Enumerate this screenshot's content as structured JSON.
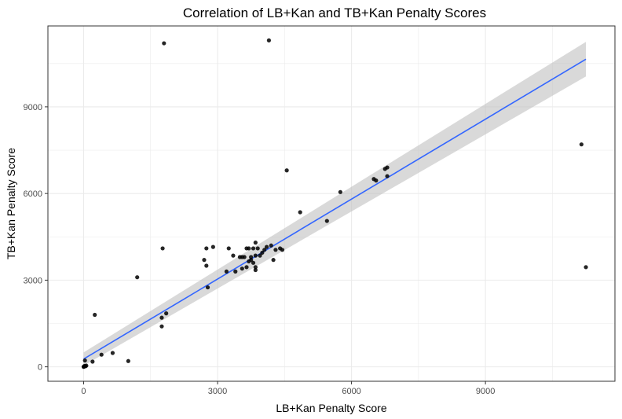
{
  "chart_data": {
    "type": "scatter",
    "title": "Correlation of LB+Kan and TB+Kan Penalty Scores",
    "xlabel": "LB+Kan Penalty Score",
    "ylabel": "TB+Kan Penalty Score",
    "xlim": [
      -800,
      11900
    ],
    "ylim": [
      -500,
      11800
    ],
    "xticks": [
      0,
      3000,
      6000,
      9000
    ],
    "yticks": [
      0,
      3000,
      6000,
      9000
    ],
    "xtick_labels": [
      "0",
      "3000",
      "6000",
      "9000"
    ],
    "ytick_labels": [
      "0",
      "3000",
      "6000",
      "9000"
    ],
    "grid": true,
    "legend": "none",
    "colors": {
      "points": "#000000",
      "fit_line": "#3366ff",
      "confidence_band": "#bfbfbf",
      "grid": "#ebebeb",
      "panel_border": "#333333"
    },
    "points": [
      {
        "x": 0,
        "y": 0
      },
      {
        "x": 10,
        "y": 10
      },
      {
        "x": 20,
        "y": 30
      },
      {
        "x": 40,
        "y": 20
      },
      {
        "x": 60,
        "y": 40
      },
      {
        "x": 30,
        "y": 220
      },
      {
        "x": 200,
        "y": 180
      },
      {
        "x": 250,
        "y": 1800
      },
      {
        "x": 400,
        "y": 420
      },
      {
        "x": 650,
        "y": 480
      },
      {
        "x": 1000,
        "y": 200
      },
      {
        "x": 1200,
        "y": 3100
      },
      {
        "x": 1750,
        "y": 1700
      },
      {
        "x": 1750,
        "y": 1400
      },
      {
        "x": 1770,
        "y": 4100
      },
      {
        "x": 1800,
        "y": 11200
      },
      {
        "x": 1850,
        "y": 1850
      },
      {
        "x": 2700,
        "y": 3700
      },
      {
        "x": 2750,
        "y": 4100
      },
      {
        "x": 2750,
        "y": 3500
      },
      {
        "x": 2780,
        "y": 2750
      },
      {
        "x": 2900,
        "y": 4150
      },
      {
        "x": 3200,
        "y": 3300
      },
      {
        "x": 3250,
        "y": 4100
      },
      {
        "x": 3350,
        "y": 3850
      },
      {
        "x": 3400,
        "y": 3300
      },
      {
        "x": 3500,
        "y": 3800
      },
      {
        "x": 3550,
        "y": 3400
      },
      {
        "x": 3550,
        "y": 3800
      },
      {
        "x": 3600,
        "y": 3800
      },
      {
        "x": 3650,
        "y": 3450
      },
      {
        "x": 3650,
        "y": 4100
      },
      {
        "x": 3700,
        "y": 3650
      },
      {
        "x": 3700,
        "y": 4100
      },
      {
        "x": 3750,
        "y": 3700
      },
      {
        "x": 3750,
        "y": 3800
      },
      {
        "x": 3800,
        "y": 4100
      },
      {
        "x": 3800,
        "y": 3600
      },
      {
        "x": 3850,
        "y": 4300
      },
      {
        "x": 3850,
        "y": 3350
      },
      {
        "x": 3850,
        "y": 3450
      },
      {
        "x": 3850,
        "y": 3850
      },
      {
        "x": 3900,
        "y": 4100
      },
      {
        "x": 3950,
        "y": 3850
      },
      {
        "x": 4000,
        "y": 3950
      },
      {
        "x": 4050,
        "y": 4050
      },
      {
        "x": 4100,
        "y": 4150
      },
      {
        "x": 4150,
        "y": 11300
      },
      {
        "x": 4200,
        "y": 4200
      },
      {
        "x": 4250,
        "y": 3700
      },
      {
        "x": 4300,
        "y": 4050
      },
      {
        "x": 4400,
        "y": 4100
      },
      {
        "x": 4450,
        "y": 4050
      },
      {
        "x": 4550,
        "y": 6800
      },
      {
        "x": 4850,
        "y": 5350
      },
      {
        "x": 5450,
        "y": 5050
      },
      {
        "x": 5750,
        "y": 6050
      },
      {
        "x": 6500,
        "y": 6500
      },
      {
        "x": 6550,
        "y": 6450
      },
      {
        "x": 6750,
        "y": 6850
      },
      {
        "x": 6800,
        "y": 6900
      },
      {
        "x": 6800,
        "y": 6600
      },
      {
        "x": 11150,
        "y": 7700
      },
      {
        "x": 11250,
        "y": 3450
      }
    ],
    "fit_line": {
      "method": "linear",
      "x": [
        0,
        11250
      ],
      "y": [
        270,
        10650
      ],
      "se_upper": [
        500,
        11250
      ],
      "se_lower": [
        40,
        10050
      ]
    }
  }
}
